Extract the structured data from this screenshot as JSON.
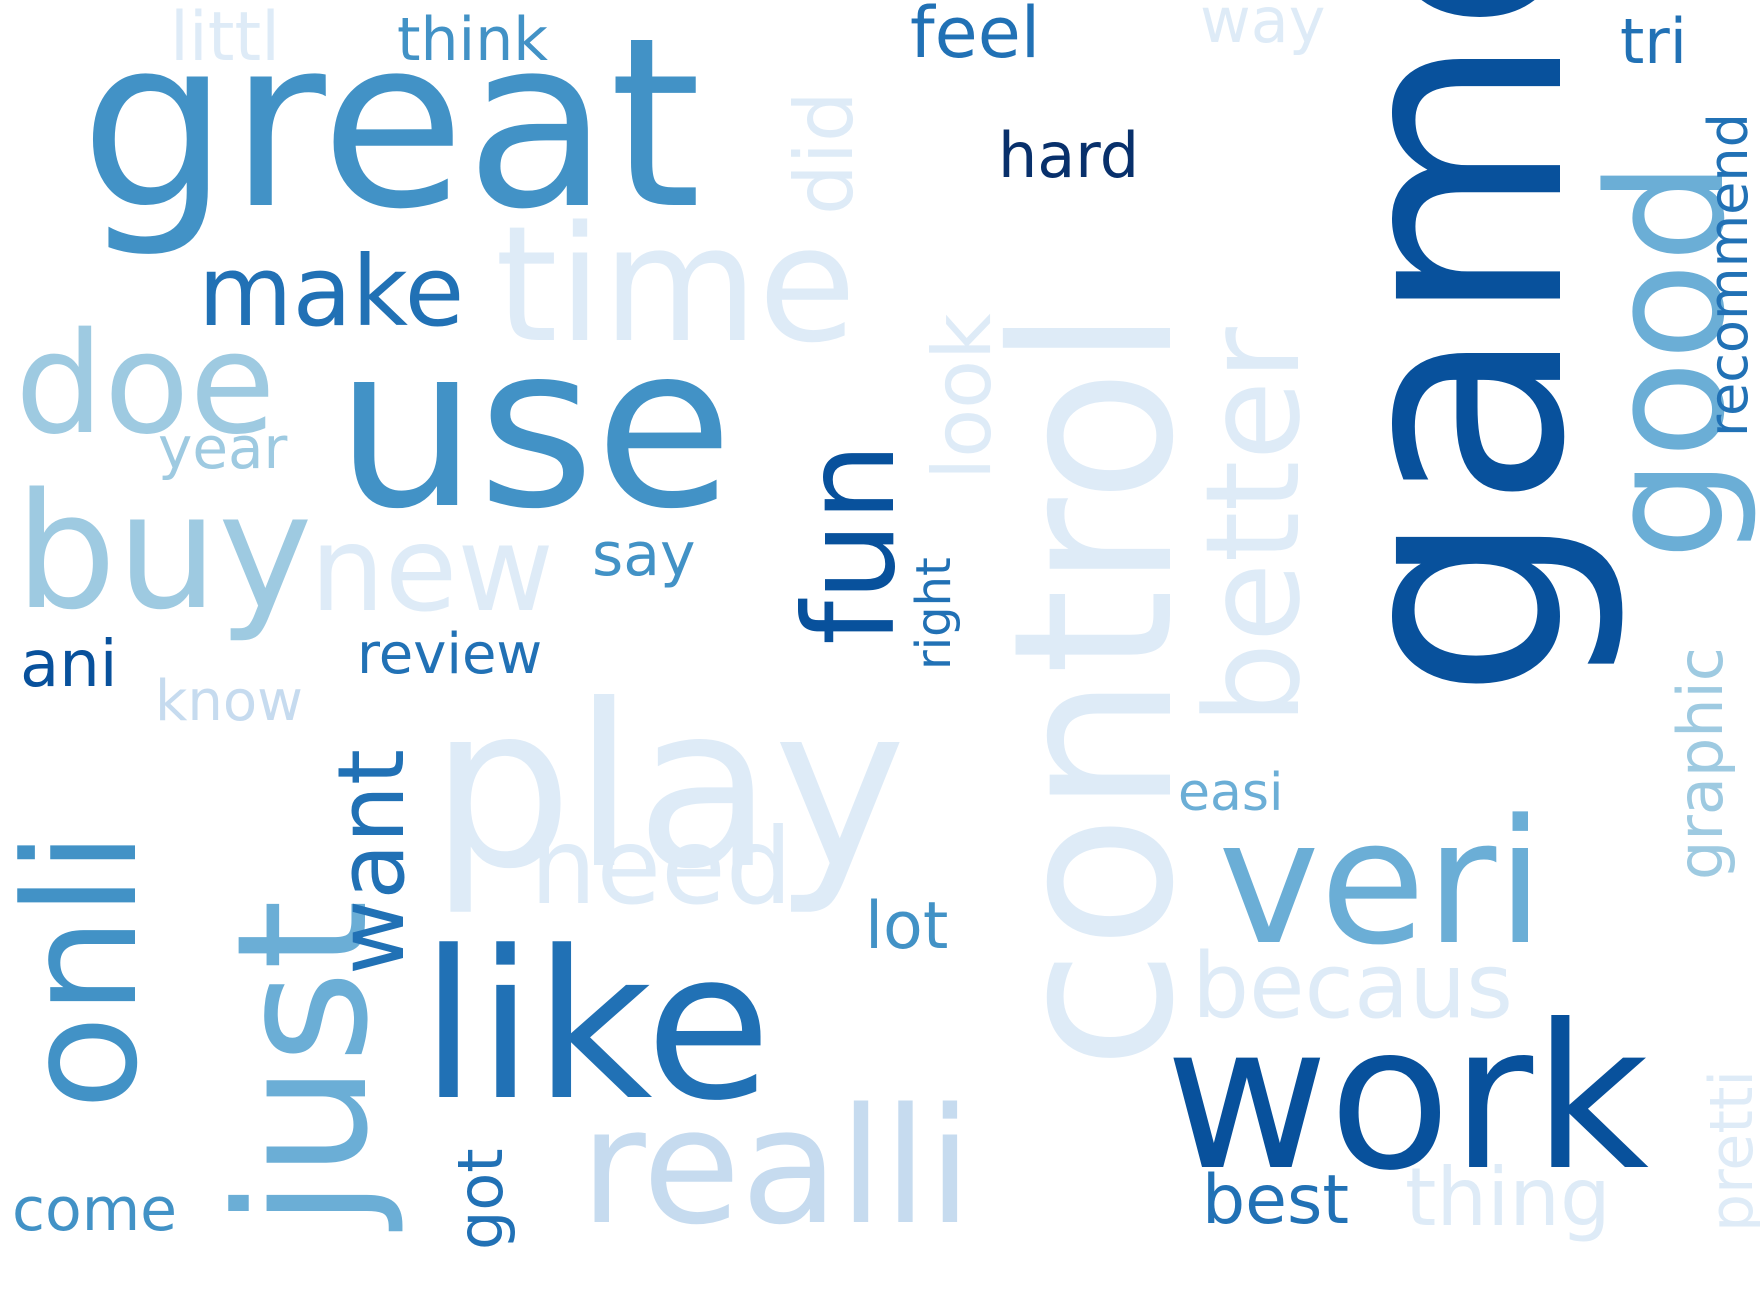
{
  "word_cloud": {
    "colors": {
      "background": "#ffffff",
      "darkest": "#08306b",
      "dark": "#08519c",
      "strong": "#2171b5",
      "medium": "#4292c6",
      "mid_light": "#6baed6",
      "light": "#9ecae1",
      "lighter": "#c6dbef",
      "faintest": "#deebf7"
    },
    "words": [
      {
        "id": "game",
        "text": "game",
        "color": "#08519c"
      },
      {
        "id": "control",
        "text": "control",
        "color": "#deebf7"
      },
      {
        "id": "great",
        "text": "great",
        "color": "#4292c6"
      },
      {
        "id": "like",
        "text": "like",
        "color": "#2171b5"
      },
      {
        "id": "work",
        "text": "work",
        "color": "#08519c"
      },
      {
        "id": "use",
        "text": "use",
        "color": "#4292c6"
      },
      {
        "id": "play",
        "text": "play",
        "color": "#deebf7"
      },
      {
        "id": "just",
        "text": "just",
        "color": "#6baed6"
      },
      {
        "id": "good",
        "text": "good",
        "color": "#6baed6"
      },
      {
        "id": "veri",
        "text": "veri",
        "color": "#6baed6"
      },
      {
        "id": "realli",
        "text": "realli",
        "color": "#c6dbef"
      },
      {
        "id": "buy",
        "text": "buy",
        "color": "#9ecae1"
      },
      {
        "id": "onli",
        "text": "onli",
        "color": "#4292c6"
      },
      {
        "id": "time",
        "text": "time",
        "color": "#deebf7"
      },
      {
        "id": "doe",
        "text": "doe",
        "color": "#9ecae1"
      },
      {
        "id": "better",
        "text": "better",
        "color": "#deebf7"
      },
      {
        "id": "fun",
        "text": "fun",
        "color": "#08519c"
      },
      {
        "id": "make",
        "text": "make",
        "color": "#2171b5"
      },
      {
        "id": "new",
        "text": "new",
        "color": "#deebf7"
      },
      {
        "id": "want",
        "text": "want",
        "color": "#2171b5"
      },
      {
        "id": "need",
        "text": "need",
        "color": "#deebf7"
      },
      {
        "id": "becaus",
        "text": "becaus",
        "color": "#deebf7"
      },
      {
        "id": "look",
        "text": "look",
        "color": "#deebf7"
      },
      {
        "id": "did",
        "text": "did",
        "color": "#deebf7"
      },
      {
        "id": "thing",
        "text": "thing",
        "color": "#deebf7"
      },
      {
        "id": "graphic",
        "text": "graphic",
        "color": "#9ecae1"
      },
      {
        "id": "recommend",
        "text": "recommend",
        "color": "#2171b5"
      },
      {
        "id": "pretti",
        "text": "pretti",
        "color": "#deebf7"
      },
      {
        "id": "feel",
        "text": "feel",
        "color": "#2171b5"
      },
      {
        "id": "hard",
        "text": "hard",
        "color": "#08306b"
      },
      {
        "id": "best",
        "text": "best",
        "color": "#2171b5"
      },
      {
        "id": "lot",
        "text": "lot",
        "color": "#4292c6"
      },
      {
        "id": "come",
        "text": "come",
        "color": "#4292c6"
      },
      {
        "id": "review",
        "text": "review",
        "color": "#2171b5"
      },
      {
        "id": "littl",
        "text": "littl",
        "color": "#deebf7"
      },
      {
        "id": "think",
        "text": "think",
        "color": "#4292c6"
      },
      {
        "id": "way",
        "text": "way",
        "color": "#deebf7"
      },
      {
        "id": "tri",
        "text": "tri",
        "color": "#2171b5"
      },
      {
        "id": "say",
        "text": "say",
        "color": "#4292c6"
      },
      {
        "id": "year",
        "text": "year",
        "color": "#9ecae1"
      },
      {
        "id": "ani",
        "text": "ani",
        "color": "#08519c"
      },
      {
        "id": "know",
        "text": "know",
        "color": "#c6dbef"
      },
      {
        "id": "right",
        "text": "right",
        "color": "#2171b5"
      },
      {
        "id": "easi",
        "text": "easi",
        "color": "#6baed6"
      },
      {
        "id": "got",
        "text": "got",
        "color": "#2171b5"
      }
    ]
  }
}
